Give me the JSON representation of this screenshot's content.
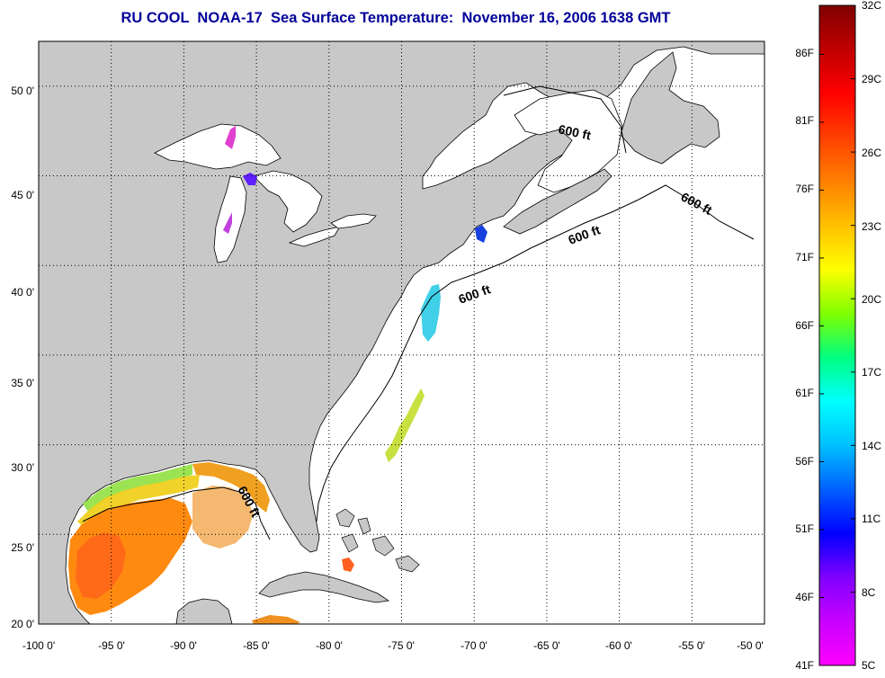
{
  "title": "RU COOL  NOAA-17  Sea Surface Temperature:  November 16, 2006 1638 GMT",
  "map": {
    "lon_range": [
      -100,
      -50
    ],
    "lat_range": [
      20,
      52.5
    ],
    "x_ticks": [
      "-100 0'",
      "-95 0'",
      "-90 0'",
      "-85 0'",
      "-80 0'",
      "-75 0'",
      "-70 0'",
      "-65 0'",
      "-60 0'",
      "-55 0'",
      "-50 0'"
    ],
    "y_ticks": [
      "50 0'",
      "45 0'",
      "40 0'",
      "35 0'",
      "30 0'",
      "25 0'",
      "20 0'"
    ],
    "grid": "dotted",
    "land_color": "#c8c8c8",
    "ocean_color": "#ffffff",
    "contour_labels": [
      "600 ft",
      "600 ft",
      "600 ft",
      "600 ft",
      "600 ft"
    ]
  },
  "colorbar": {
    "orientation": "vertical",
    "range_c": [
      5,
      32
    ],
    "celsius_labels": [
      "32C",
      "29C",
      "26C",
      "23C",
      "20C",
      "17C",
      "14C",
      "11C",
      "8C",
      "5C"
    ],
    "fahrenheit_labels": [
      "86F",
      "81F",
      "76F",
      "71F",
      "66F",
      "61F",
      "56F",
      "51F",
      "46F",
      "41F"
    ],
    "colors": [
      "#ff00ff",
      "#c800ff",
      "#8000ff",
      "#0000ff",
      "#0060ff",
      "#00c0ff",
      "#00ffff",
      "#00ff80",
      "#80ff00",
      "#ffff00",
      "#ffc000",
      "#ff8000",
      "#ff4000",
      "#ff0000",
      "#c00000",
      "#800000"
    ]
  }
}
